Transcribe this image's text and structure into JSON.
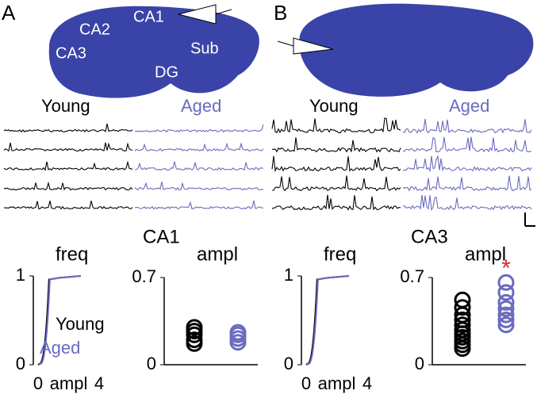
{
  "panels": [
    {
      "letter": "A",
      "region": "CA1",
      "brain_labels": [
        "CA1",
        "CA2",
        "CA3",
        "DG",
        "Sub"
      ],
      "groups": [
        "Young",
        "Aged"
      ],
      "freq": {
        "title": "freq",
        "ylim": [
          0,
          1
        ],
        "yticks": [
          1,
          0
        ],
        "xlim": [
          0,
          4
        ],
        "xticks": [
          0,
          4
        ],
        "xlabel": "ampl",
        "legend": [
          "Young",
          "Aged"
        ]
      },
      "ampl": {
        "title": "ampl",
        "ylim": [
          0,
          0.7
        ],
        "yticks": [
          0.7,
          0
        ],
        "series": [
          {
            "name": "Young",
            "color": "#000000",
            "values": [
              0.3,
              0.27,
              0.24,
              0.2,
              0.17
            ]
          },
          {
            "name": "Aged",
            "color": "#6b6bbf",
            "values": [
              0.26,
              0.24,
              0.21,
              0.18
            ]
          }
        ]
      }
    },
    {
      "letter": "B",
      "region": "CA3",
      "groups": [
        "Young",
        "Aged"
      ],
      "freq": {
        "title": "freq",
        "ylim": [
          0,
          1
        ],
        "yticks": [
          1,
          0
        ],
        "xlim": [
          0,
          4
        ],
        "xticks": [
          0,
          4
        ],
        "xlabel": "ampl"
      },
      "ampl": {
        "title": "ampl",
        "ylim": [
          0,
          0.7
        ],
        "yticks": [
          0.7,
          0
        ],
        "significance": "*",
        "series": [
          {
            "name": "Young",
            "color": "#000000",
            "values": [
              0.52,
              0.46,
              0.4,
              0.36,
              0.32,
              0.28,
              0.25,
              0.22,
              0.19,
              0.16,
              0.13
            ]
          },
          {
            "name": "Aged",
            "color": "#6b6bbf",
            "values": [
              0.66,
              0.58,
              0.5,
              0.45,
              0.4,
              0.36,
              0.32
            ]
          }
        ]
      }
    }
  ]
}
